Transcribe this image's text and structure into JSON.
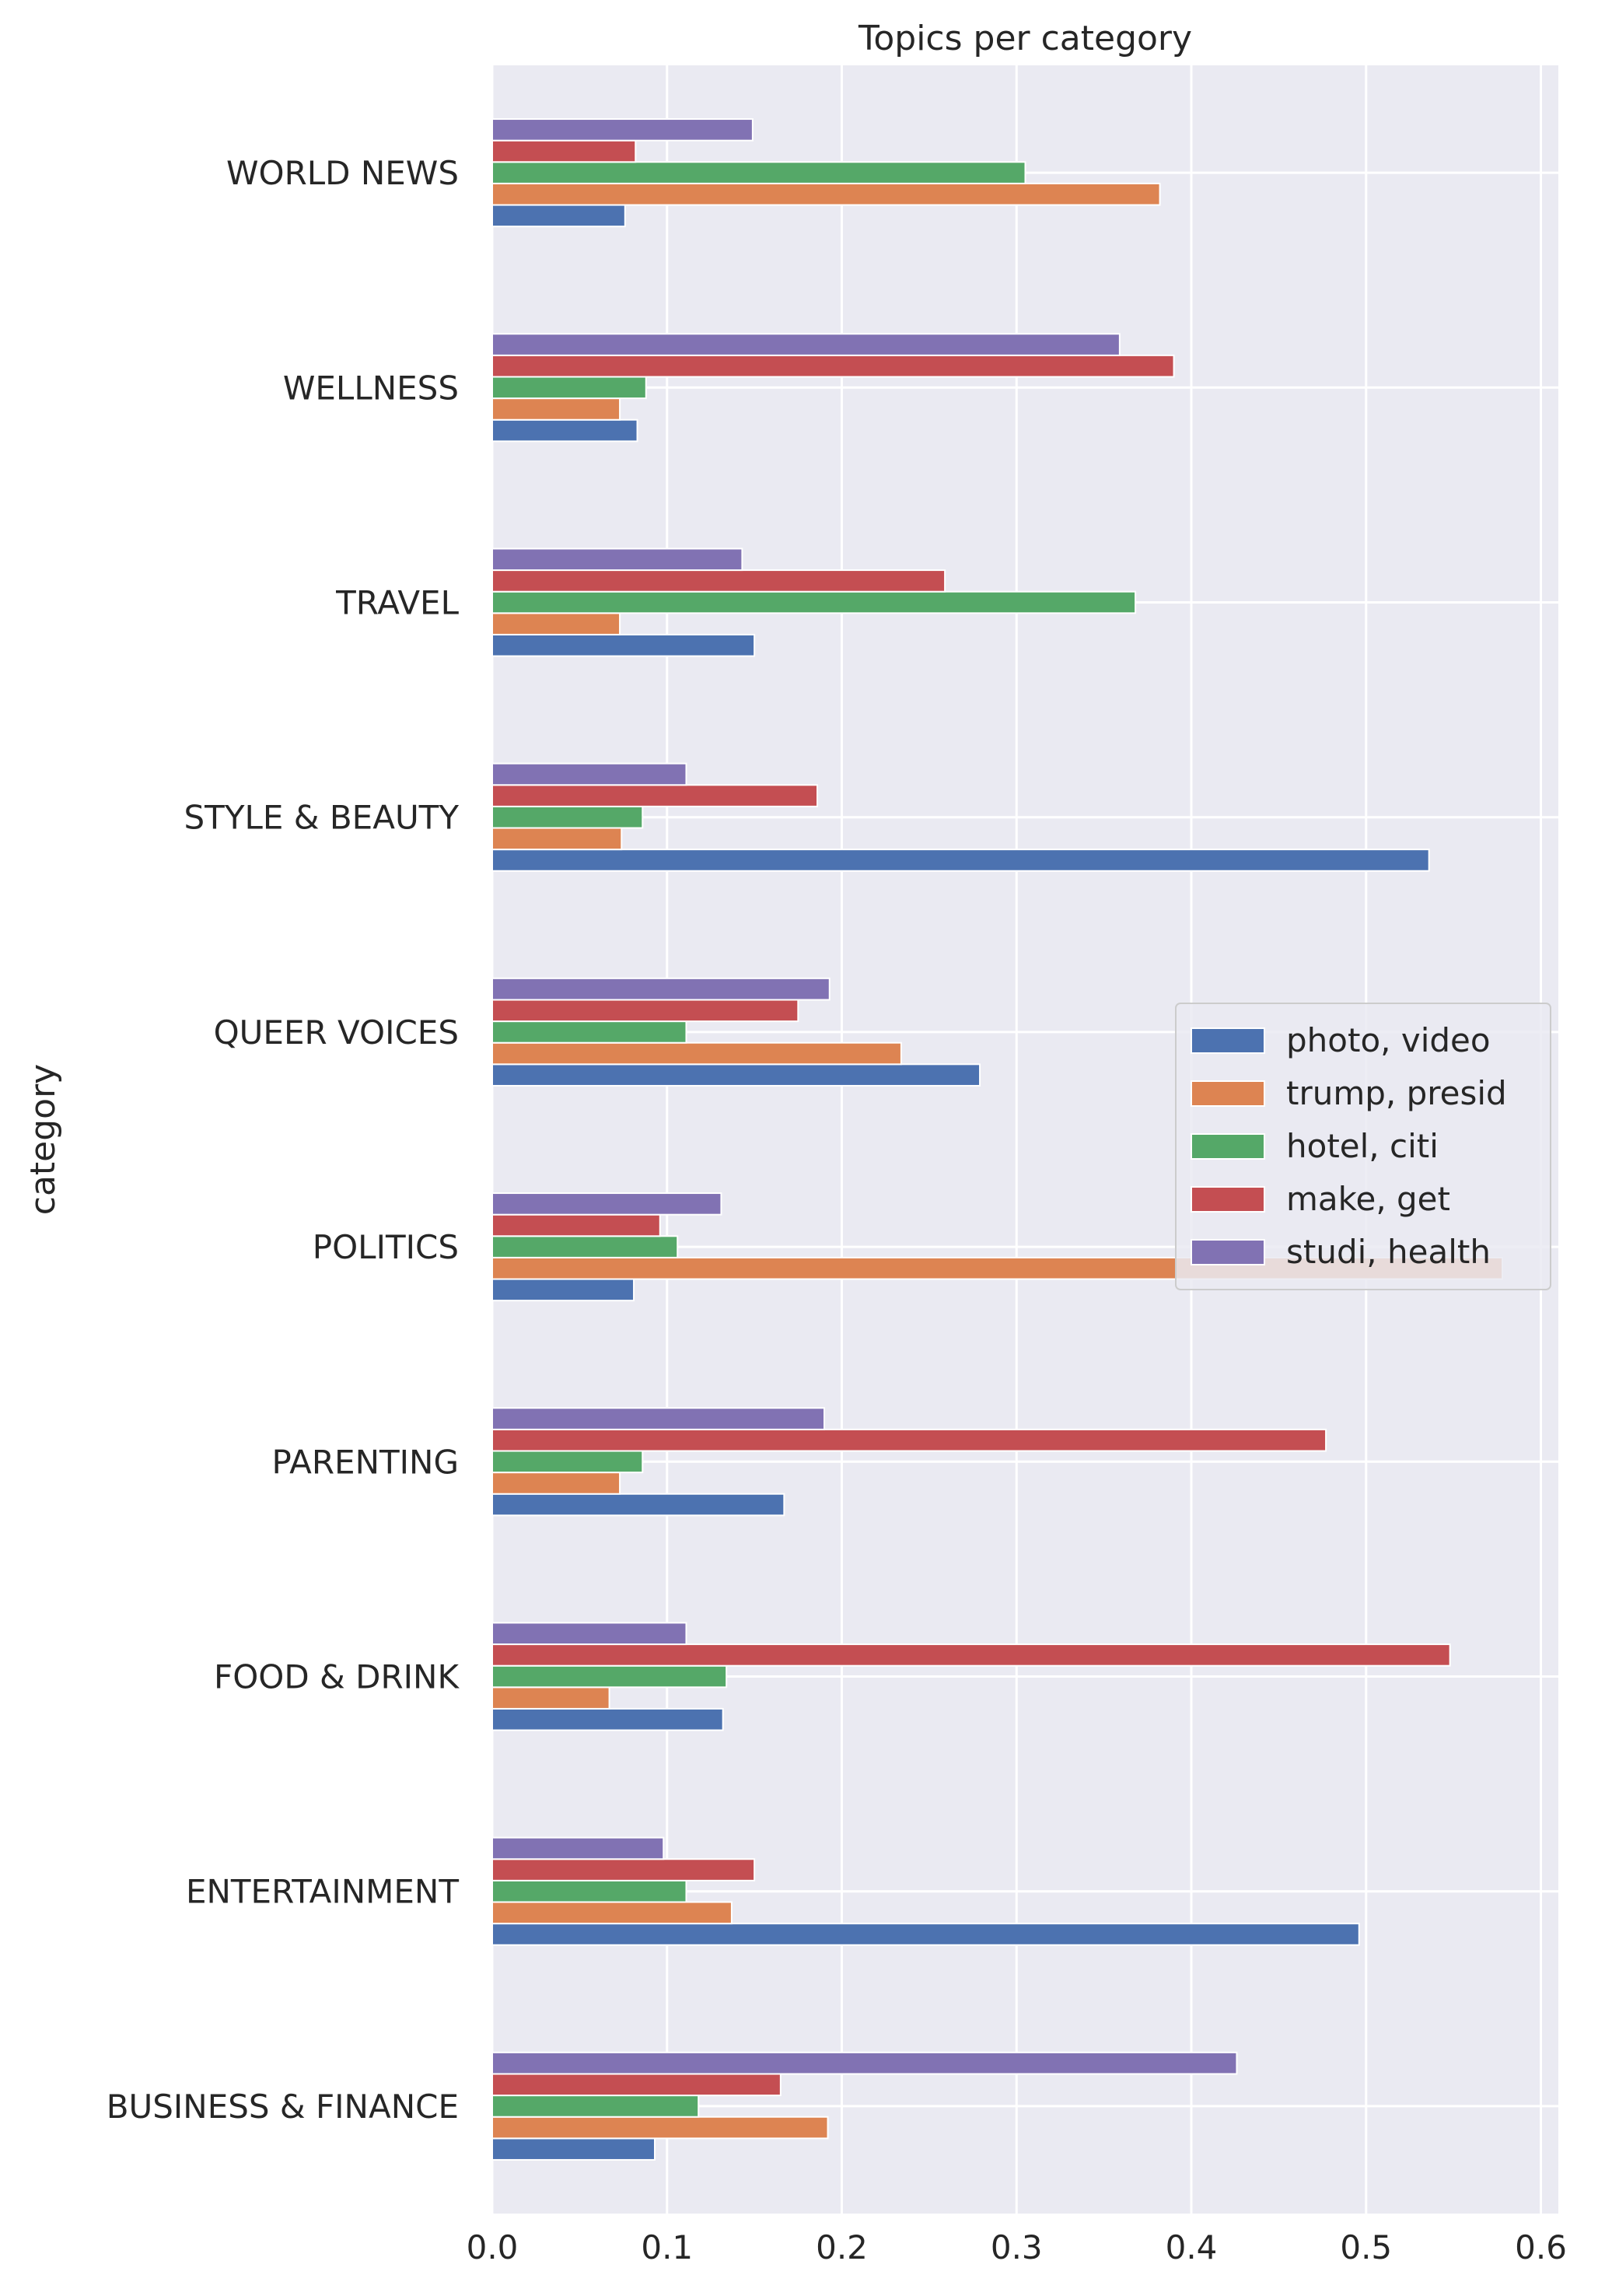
{
  "chart_data": {
    "type": "bar",
    "orientation": "horizontal",
    "title": "Topics per category",
    "ylabel": "category",
    "xlabel": "",
    "xlim": [
      0,
      0.61
    ],
    "xticks": [
      "0.0",
      "0.1",
      "0.2",
      "0.3",
      "0.4",
      "0.5",
      "0.6"
    ],
    "grid": true,
    "legend_position": "center-right",
    "categories": [
      "WORLD NEWS",
      "WELLNESS",
      "TRAVEL",
      "STYLE & BEAUTY",
      "QUEER VOICES",
      "POLITICS",
      "PARENTING",
      "FOOD & DRINK",
      "ENTERTAINMENT",
      "BUSINESS & FINANCE"
    ],
    "series": [
      {
        "name": "photo, video",
        "color": "#4c72b0",
        "values": [
          0.076,
          0.083,
          0.15,
          0.536,
          0.279,
          0.081,
          0.167,
          0.132,
          0.496,
          0.093
        ]
      },
      {
        "name": "trump, presid",
        "color": "#dd8452",
        "values": [
          0.382,
          0.073,
          0.073,
          0.074,
          0.234,
          0.578,
          0.073,
          0.067,
          0.137,
          0.192
        ]
      },
      {
        "name": "hotel, citi",
        "color": "#55a868",
        "values": [
          0.305,
          0.088,
          0.368,
          0.086,
          0.111,
          0.106,
          0.086,
          0.134,
          0.111,
          0.118
        ]
      },
      {
        "name": "make, get",
        "color": "#c44e52",
        "values": [
          0.082,
          0.39,
          0.259,
          0.186,
          0.175,
          0.096,
          0.477,
          0.548,
          0.15,
          0.165
        ]
      },
      {
        "name": "studi, health",
        "color": "#8172b3",
        "values": [
          0.149,
          0.359,
          0.143,
          0.111,
          0.193,
          0.131,
          0.19,
          0.111,
          0.098,
          0.426
        ]
      }
    ]
  }
}
